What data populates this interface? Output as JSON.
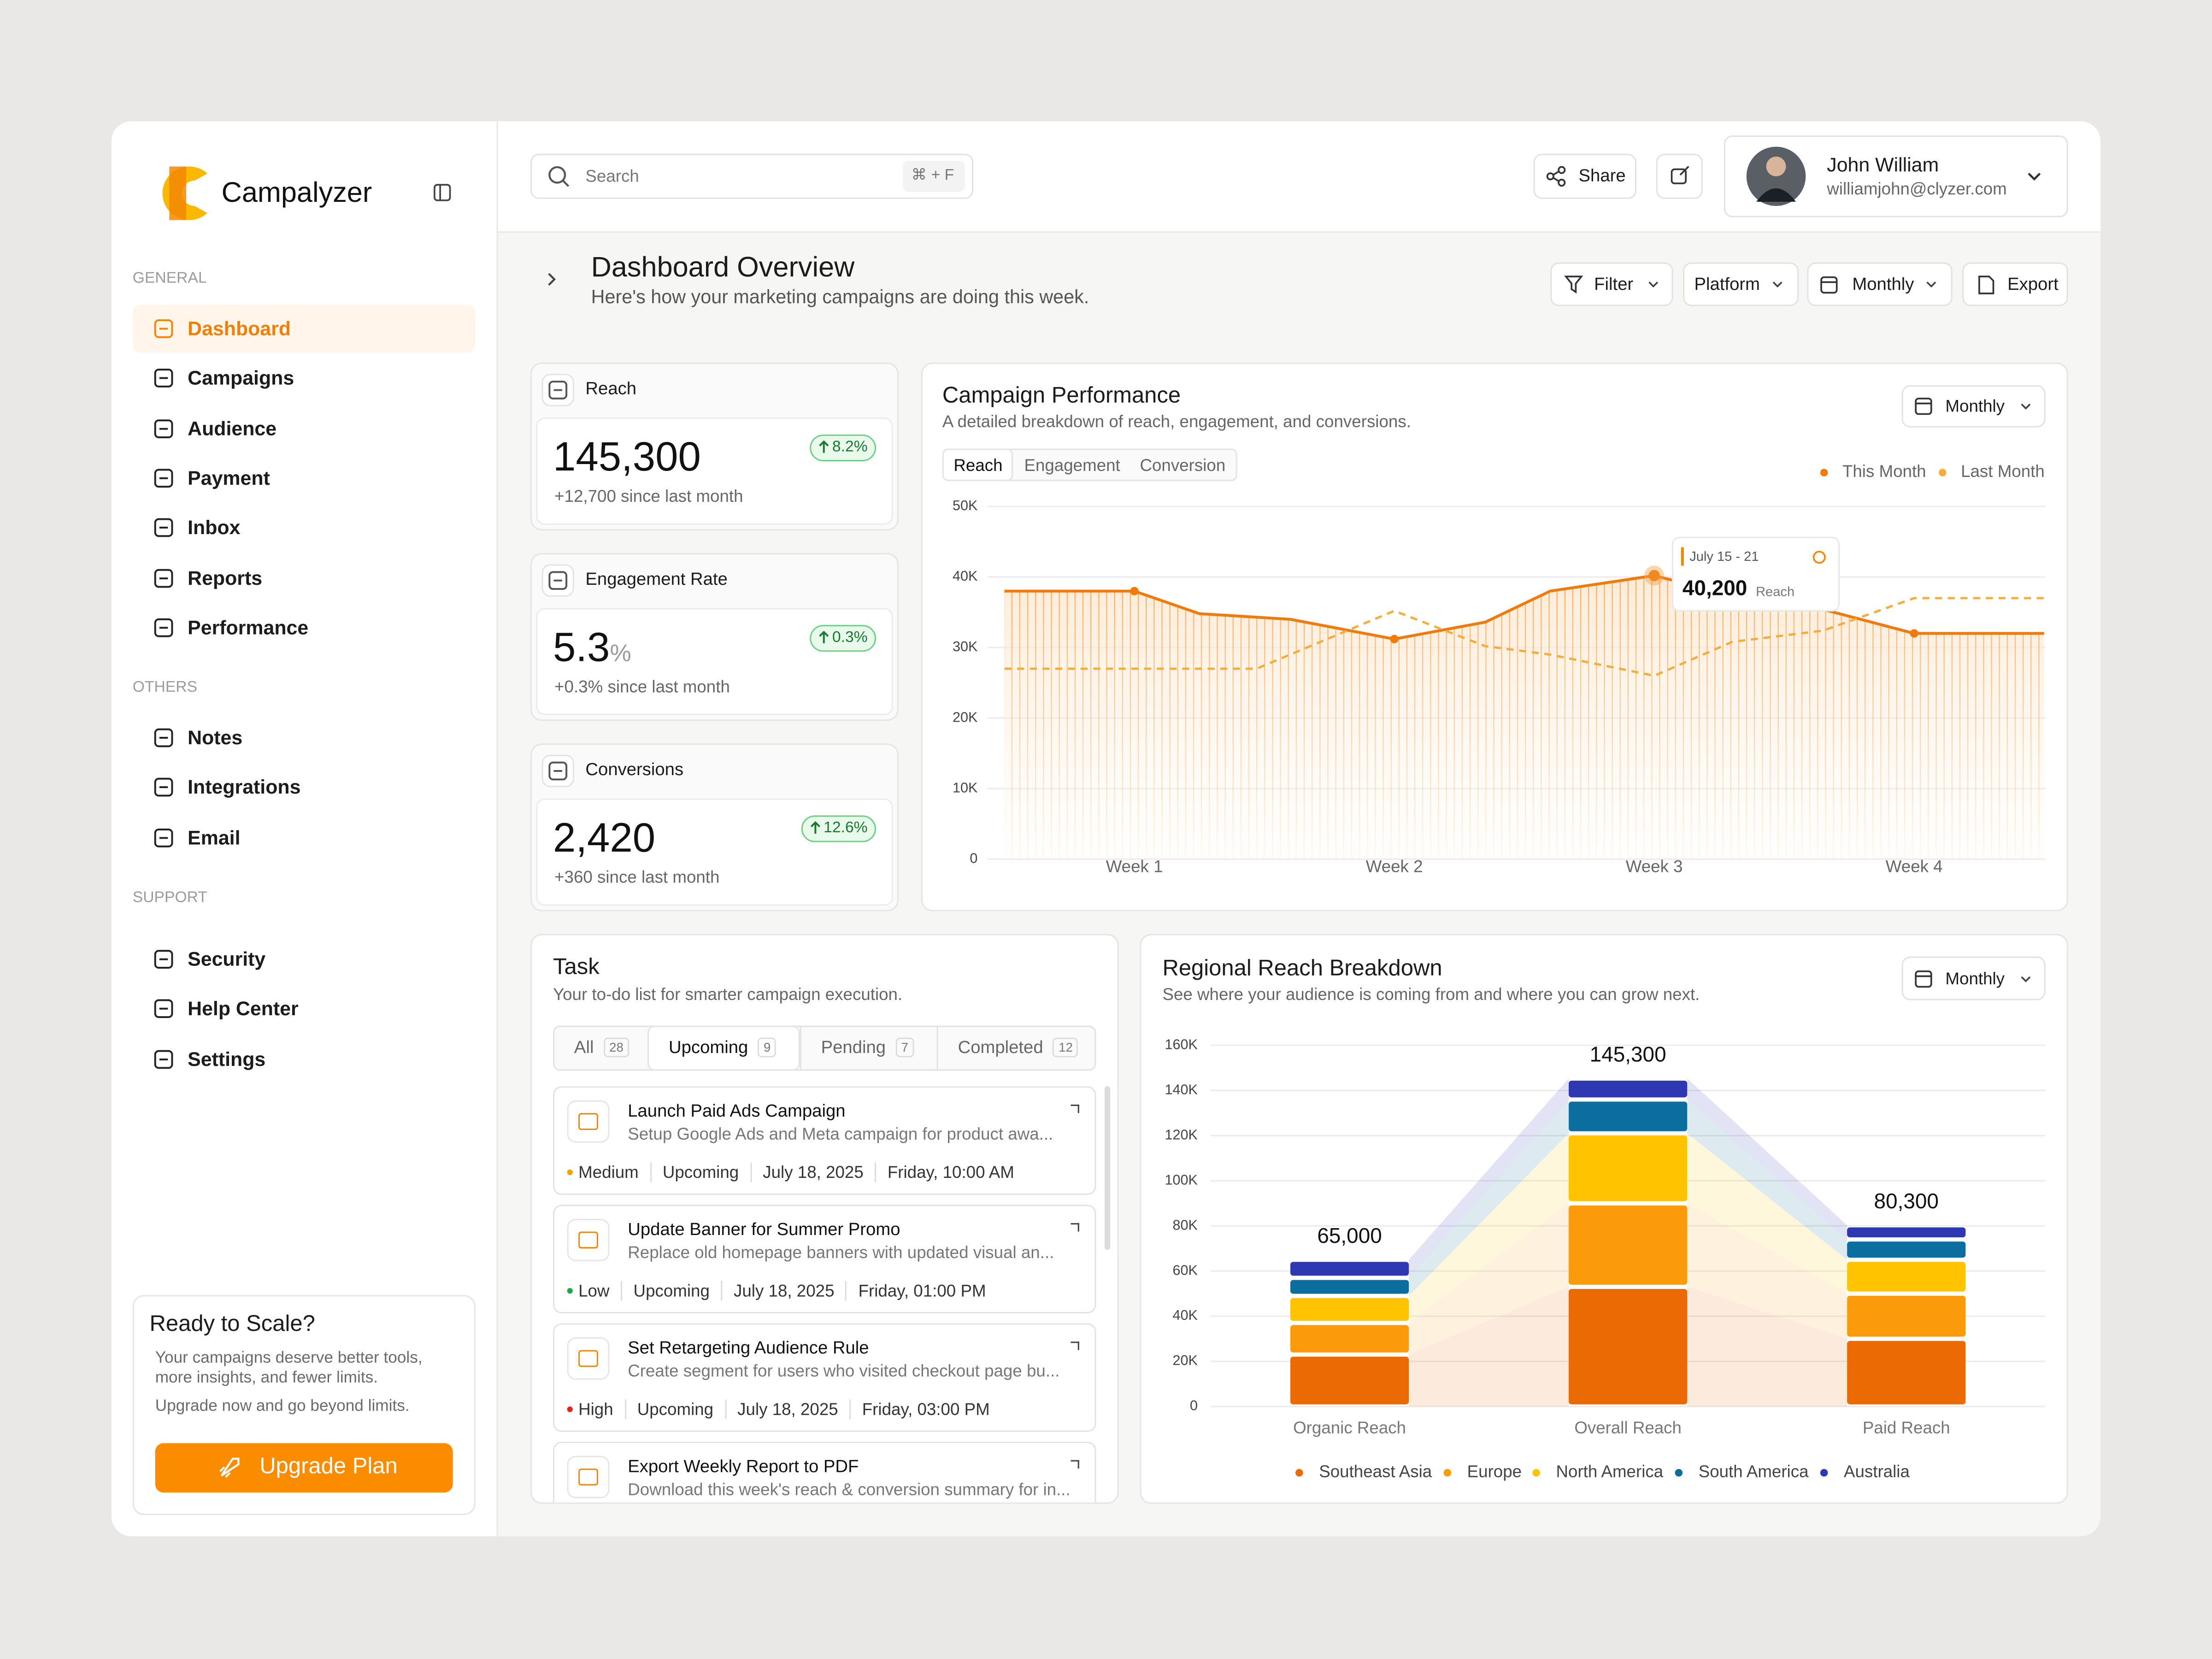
{
  "sidebar": {
    "brand": "Campalyzer",
    "sections": [
      {
        "title": "GENERAL",
        "items": [
          "Dashboard",
          "Campaigns",
          "Audience",
          "Payment",
          "Inbox",
          "Reports",
          "Performance"
        ],
        "active": 0
      },
      {
        "title": "OTHERS",
        "items": [
          "Notes",
          "Integrations",
          "Email"
        ]
      },
      {
        "title": "SUPPORT",
        "items": [
          "Security",
          "Help Center",
          "Settings"
        ]
      }
    ],
    "promo": {
      "title": "Ready to Scale?",
      "text": "Your campaigns deserve better tools, more insights, and fewer limits.",
      "text2": "Upgrade now and go beyond limits.",
      "button": "Upgrade Plan"
    }
  },
  "header": {
    "search": "Search",
    "shortcut": "⌘ + F",
    "share": "Share",
    "user": {
      "name": "John William",
      "email": "williamjohn@clyzer.com"
    }
  },
  "page": {
    "title": "Dashboard Overview",
    "subtitle": "Here's how your marketing campaigns are doing this week.",
    "controls": [
      "Filter",
      "Platform",
      "Monthly",
      "Export"
    ]
  },
  "kpis": [
    {
      "label": "Reach",
      "value": "145,300",
      "change": "8.2%",
      "note": "+12,700 since last month"
    },
    {
      "label": "Engagement Rate",
      "value": "5.3",
      "unit": "%",
      "change": "0.3%",
      "note": "+0.3% since last month"
    },
    {
      "label": "Conversions",
      "value": "2,420",
      "change": "12.6%",
      "note": "+360 since last month"
    }
  ],
  "tasks": {
    "title": "Task",
    "subtitle": "Your to-do list for smarter campaign execution.",
    "tabs": [
      {
        "label": "All",
        "count": 28
      },
      {
        "label": "Upcoming",
        "count": 9
      },
      {
        "label": "Pending",
        "count": 7
      },
      {
        "label": "Completed",
        "count": 12
      }
    ],
    "active_tab": 1,
    "items": [
      {
        "title": "Launch Paid Ads Campaign",
        "description": "Setup Google Ads and Meta campaign for product awa...",
        "priority": "Medium",
        "color": "#f5a000",
        "status": "Upcoming",
        "date": "July 18, 2025",
        "time": "Friday, 10:00 AM"
      },
      {
        "title": "Update Banner for Summer Promo",
        "description": "Replace old homepage banners with updated visual an...",
        "priority": "Low",
        "color": "#22a447",
        "status": "Upcoming",
        "date": "July 18, 2025",
        "time": "Friday, 01:00 PM"
      },
      {
        "title": "Set Retargeting Audience Rule",
        "description": "Create segment for users who visited checkout page bu...",
        "priority": "High",
        "color": "#e5231b",
        "status": "Upcoming",
        "date": "July 18, 2025",
        "time": "Friday, 03:00 PM"
      },
      {
        "title": "Export Weekly Report to PDF",
        "description": "Download this week's reach & conversion summary for in..."
      }
    ]
  },
  "chart_data": [
    {
      "type": "line",
      "title": "Campaign Performance",
      "subtitle": "A detailed breakdown of reach, engagement, and conversions.",
      "period": "Monthly",
      "tabs": [
        "Reach",
        "Engagement",
        "Conversion"
      ],
      "active_tab": 0,
      "xlim": [
        0.5,
        4.5
      ],
      "xticks": [
        {
          "value": 1,
          "label": "Week 1"
        },
        {
          "value": 2,
          "label": "Week 2"
        },
        {
          "value": 3,
          "label": "Week 3"
        },
        {
          "value": 4,
          "label": "Week 4"
        }
      ],
      "ylim": [
        0,
        50000
      ],
      "yticks": [
        0,
        {
          "value": 10000,
          "label": "10K"
        },
        {
          "value": 20000,
          "label": "20K"
        },
        {
          "value": 30000,
          "label": "30K"
        },
        {
          "value": 40000,
          "label": "40K"
        },
        {
          "value": 50000,
          "label": "50K"
        }
      ],
      "grid": true,
      "series": [
        {
          "name": "This Month",
          "color": "#f07b0c",
          "x": [
            0.5,
            1,
            1.25,
            1.6,
            2,
            2.35,
            2.6,
            3,
            3.3,
            3.65,
            4,
            4.5
          ],
          "values": [
            38000,
            38000,
            34800,
            34000,
            31200,
            33600,
            38000,
            40200,
            37400,
            35400,
            32000,
            32000
          ]
        },
        {
          "name": "Last Month",
          "color": "#f6ac3a",
          "dashed": true,
          "x": [
            0.5,
            1.47,
            2,
            2.35,
            2.6,
            3,
            3.3,
            3.65,
            4,
            4.5
          ],
          "values": [
            27000,
            27000,
            35200,
            30200,
            29000,
            26000,
            30800,
            32400,
            37000,
            37000
          ]
        }
      ],
      "tooltip": {
        "date": "July 15 - 21",
        "value": {
          "value": 40200,
          "label": "40,200"
        },
        "metric": "Reach"
      }
    },
    {
      "type": "stacked_bar",
      "title": "Regional Reach Breakdown",
      "subtitle": "See where your audience is coming from and where you can grow next.",
      "period": "Monthly",
      "categories": [
        "Organic Reach",
        "Overall Reach",
        "Paid Reach"
      ],
      "ylim": [
        0,
        160000
      ],
      "yticks": [
        0,
        {
          "value": 20000,
          "label": "20K"
        },
        {
          "value": 40000,
          "label": "40K"
        },
        {
          "value": 60000,
          "label": "60K"
        },
        {
          "value": 80000,
          "label": "80K"
        },
        {
          "value": 100000,
          "label": "100K"
        },
        {
          "value": 120000,
          "label": "120K"
        },
        {
          "value": 140000,
          "label": "140K"
        },
        {
          "value": 160000,
          "label": "160K"
        }
      ],
      "grid": true,
      "series": [
        {
          "name": "Southeast Asia",
          "color": "#ec6a04",
          "values": [
            23000,
            53000,
            30000
          ]
        },
        {
          "name": "Europe",
          "color": "#fb9a0b",
          "values": [
            14000,
            37000,
            20000
          ]
        },
        {
          "name": "North America",
          "color": "#ffc300",
          "values": [
            12000,
            31000,
            15000
          ]
        },
        {
          "name": "South America",
          "color": "#0c6e9e",
          "values": [
            8000,
            15000,
            9000
          ]
        },
        {
          "name": "Australia",
          "color": "#2f38b3",
          "values": [
            8000,
            9300,
            6300
          ]
        }
      ],
      "totals": [
        {
          "value": 65000,
          "label": "65,000"
        },
        {
          "value": 145300,
          "label": "145,300"
        },
        {
          "value": 80300,
          "label": "80,300"
        }
      ]
    }
  ]
}
